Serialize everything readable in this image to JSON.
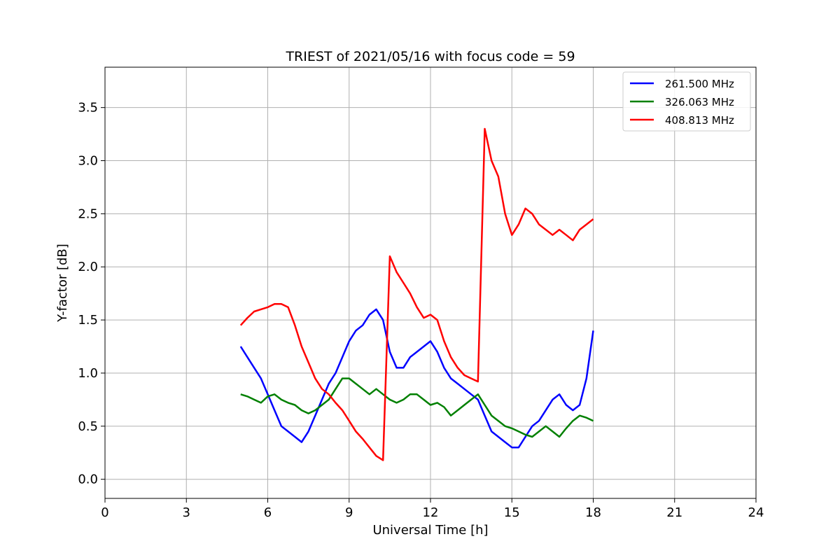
{
  "chart_data": {
    "type": "line",
    "title": "TRIEST of 2021/05/16 with focus code = 59",
    "xlabel": "Universal Time [h]",
    "ylabel": "Y-factor [dB]",
    "xlim": [
      0,
      24
    ],
    "ylim": [
      -0.18,
      3.88
    ],
    "xticks": [
      0,
      3,
      6,
      9,
      12,
      15,
      18,
      21,
      24
    ],
    "yticks": [
      0.0,
      0.5,
      1.0,
      1.5,
      2.0,
      2.5,
      3.0,
      3.5
    ],
    "xtick_labels": [
      "0",
      "3",
      "6",
      "9",
      "12",
      "15",
      "18",
      "21",
      "24"
    ],
    "ytick_labels": [
      "0.0",
      "0.5",
      "1.0",
      "1.5",
      "2.0",
      "2.5",
      "3.0",
      "3.5"
    ],
    "grid": true,
    "legend_position": "top-right",
    "series": [
      {
        "name": "261.500 MHz",
        "color": "#0000ff",
        "x": [
          5.0,
          5.25,
          5.5,
          5.75,
          6.0,
          6.25,
          6.5,
          6.75,
          7.0,
          7.25,
          7.5,
          7.75,
          8.0,
          8.25,
          8.5,
          8.75,
          9.0,
          9.25,
          9.5,
          9.75,
          10.0,
          10.25,
          10.5,
          10.75,
          11.0,
          11.25,
          11.5,
          11.75,
          12.0,
          12.25,
          12.5,
          12.75,
          13.0,
          13.25,
          13.5,
          13.75,
          14.0,
          14.25,
          14.5,
          14.75,
          15.0,
          15.25,
          15.5,
          15.75,
          16.0,
          16.25,
          16.5,
          16.75,
          17.0,
          17.25,
          17.5,
          17.75,
          18.0
        ],
        "y": [
          1.25,
          1.15,
          1.05,
          0.95,
          0.8,
          0.65,
          0.5,
          0.45,
          0.4,
          0.35,
          0.45,
          0.6,
          0.75,
          0.9,
          1.0,
          1.15,
          1.3,
          1.4,
          1.45,
          1.55,
          1.6,
          1.5,
          1.2,
          1.05,
          1.05,
          1.15,
          1.2,
          1.25,
          1.3,
          1.2,
          1.05,
          0.95,
          0.9,
          0.85,
          0.8,
          0.75,
          0.6,
          0.45,
          0.4,
          0.35,
          0.3,
          0.3,
          0.4,
          0.5,
          0.55,
          0.65,
          0.75,
          0.8,
          0.7,
          0.65,
          0.7,
          0.95,
          1.4
        ]
      },
      {
        "name": "326.063 MHz",
        "color": "#008000",
        "x": [
          5.0,
          5.25,
          5.5,
          5.75,
          6.0,
          6.25,
          6.5,
          6.75,
          7.0,
          7.25,
          7.5,
          7.75,
          8.0,
          8.25,
          8.5,
          8.75,
          9.0,
          9.25,
          9.5,
          9.75,
          10.0,
          10.25,
          10.5,
          10.75,
          11.0,
          11.25,
          11.5,
          11.75,
          12.0,
          12.25,
          12.5,
          12.75,
          13.0,
          13.25,
          13.5,
          13.75,
          14.0,
          14.25,
          14.5,
          14.75,
          15.0,
          15.25,
          15.5,
          15.75,
          16.0,
          16.25,
          16.5,
          16.75,
          17.0,
          17.25,
          17.5,
          17.75,
          18.0
        ],
        "y": [
          0.8,
          0.78,
          0.75,
          0.72,
          0.78,
          0.8,
          0.75,
          0.72,
          0.7,
          0.65,
          0.62,
          0.65,
          0.7,
          0.75,
          0.85,
          0.95,
          0.95,
          0.9,
          0.85,
          0.8,
          0.85,
          0.8,
          0.75,
          0.72,
          0.75,
          0.8,
          0.8,
          0.75,
          0.7,
          0.72,
          0.68,
          0.6,
          0.65,
          0.7,
          0.75,
          0.8,
          0.7,
          0.6,
          0.55,
          0.5,
          0.48,
          0.45,
          0.42,
          0.4,
          0.45,
          0.5,
          0.45,
          0.4,
          0.48,
          0.55,
          0.6,
          0.58,
          0.55
        ]
      },
      {
        "name": "408.813 MHz",
        "color": "#ff0000",
        "x": [
          5.0,
          5.25,
          5.5,
          5.75,
          6.0,
          6.25,
          6.5,
          6.75,
          7.0,
          7.25,
          7.5,
          7.75,
          8.0,
          8.25,
          8.5,
          8.75,
          9.0,
          9.25,
          9.5,
          9.75,
          10.0,
          10.25,
          10.5,
          10.75,
          11.0,
          11.25,
          11.5,
          11.75,
          12.0,
          12.25,
          12.5,
          12.75,
          13.0,
          13.25,
          13.5,
          13.75,
          14.0,
          14.25,
          14.5,
          14.75,
          15.0,
          15.25,
          15.5,
          15.75,
          16.0,
          16.25,
          16.5,
          16.75,
          17.0,
          17.25,
          17.5,
          17.75,
          18.0
        ],
        "y": [
          1.45,
          1.52,
          1.58,
          1.6,
          1.62,
          1.65,
          1.65,
          1.62,
          1.45,
          1.25,
          1.1,
          0.95,
          0.85,
          0.8,
          0.72,
          0.65,
          0.55,
          0.45,
          0.38,
          0.3,
          0.22,
          0.18,
          2.1,
          1.95,
          1.85,
          1.75,
          1.62,
          1.52,
          1.55,
          1.5,
          1.3,
          1.15,
          1.05,
          0.98,
          0.95,
          0.92,
          3.3,
          3.0,
          2.85,
          2.5,
          2.3,
          2.4,
          2.55,
          2.5,
          2.4,
          2.35,
          2.3,
          2.35,
          2.3,
          2.25,
          2.35,
          2.4,
          2.45
        ]
      }
    ]
  }
}
